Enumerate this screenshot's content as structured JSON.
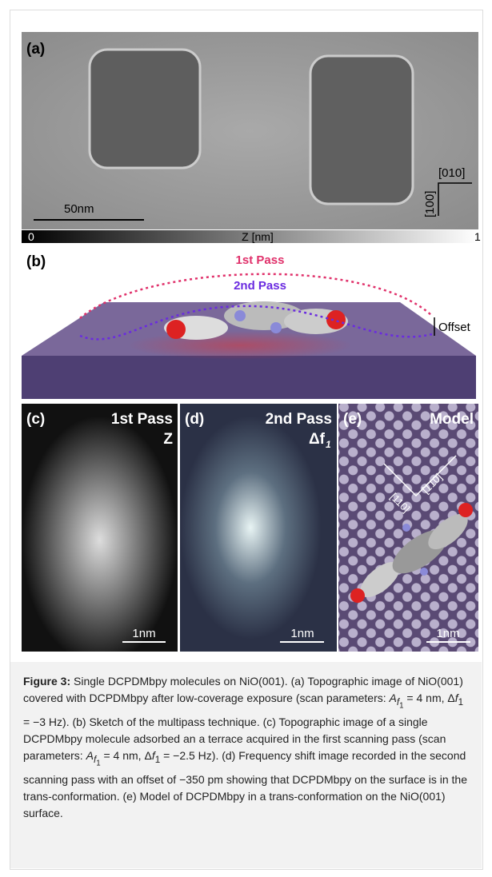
{
  "panel_a": {
    "label": "(a)",
    "scale_bar": "50nm",
    "direction_x": "[010]",
    "direction_y": "[100]",
    "colorbar_min": "0",
    "colorbar_label": "Z [nm]",
    "colorbar_max": "1"
  },
  "panel_b": {
    "label": "(b)",
    "pass_1": "1st Pass",
    "pass_2": "2nd Pass",
    "offset": "Offset"
  },
  "panel_c": {
    "label": "(c)",
    "title": "1st Pass",
    "channel": "Z",
    "scale_bar": "1nm"
  },
  "panel_d": {
    "label": "(d)",
    "title": "2nd Pass",
    "channel": "Δf",
    "channel_sub": "1",
    "scale_bar": "1nm"
  },
  "panel_e": {
    "label": "(e)",
    "title": "Model",
    "direction_1": "[110]",
    "direction_2": "[1̄10]",
    "scale_bar": "1nm"
  },
  "caption": {
    "label": "Figure 3:",
    "text": [
      " Single DCPDMbpy molecules on NiO(001). (a) Topographic image of NiO(001) covered with DCPDMbpy after low-coverage exposure (scan parameters: ",
      "A",
      "f",
      "1",
      " = 4 nm, Δ",
      "f",
      "1",
      " = −3 Hz). (b) Sketch of the multipass technique. (c) Topographic image of a single DCPDMbpy molecule adsorbed an a terrace acquired in the first scanning pass (scan parameters: ",
      "A",
      "f",
      "1",
      " = 4 nm, Δ",
      "f",
      "1",
      " = −2.5 Hz). (d) Frequency shift image recorded in the second scanning pass with an offset of −350 pm showing that DCPDMbpy on the surface is in the trans-conformation. (e) Model of DCPDMbpy in a trans-conformation on the NiO(001) surface."
    ]
  }
}
